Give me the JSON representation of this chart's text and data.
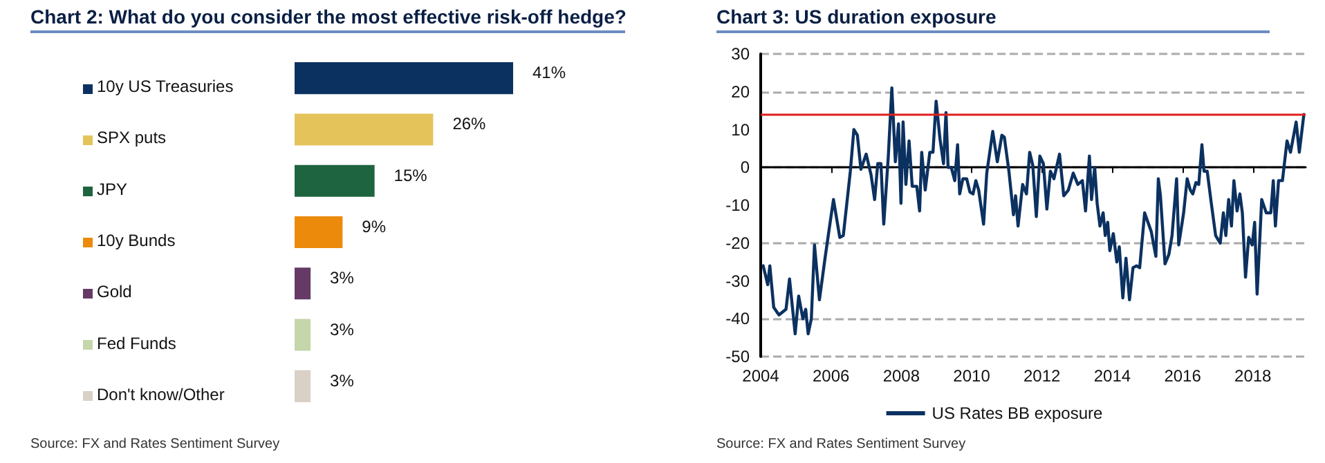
{
  "chart_data": [
    {
      "type": "bar",
      "orientation": "horizontal",
      "title": "Chart 2: What do you consider the most effective risk-off hedge?",
      "categories": [
        "10y US Treasuries",
        "SPX puts",
        "JPY",
        "10y Bunds",
        "Gold",
        "Fed Funds",
        "Don't know/Other"
      ],
      "values": [
        41,
        26,
        15,
        9,
        3,
        3,
        3
      ],
      "colors": [
        "#0b3160",
        "#e4c35a",
        "#1f6440",
        "#ec8a0c",
        "#653a66",
        "#c4d6aa",
        "#d9d0c6"
      ],
      "value_labels": [
        "41%",
        "26%",
        "15%",
        "9%",
        "3%",
        "3%",
        "3%"
      ],
      "annotations": [
        "Source:  FX and Rates Sentiment Survey"
      ]
    },
    {
      "type": "line",
      "title": "Chart 3: US duration exposure",
      "x": [
        2004.07,
        2004.2,
        2004.26,
        2004.37,
        2004.52,
        2004.72,
        2004.82,
        2004.98,
        2005.08,
        2005.2,
        2005.28,
        2005.35,
        2005.44,
        2005.53,
        2005.67,
        2005.83,
        2005.96,
        2006.07,
        2006.25,
        2006.35,
        2006.55,
        2006.65,
        2006.75,
        2006.85,
        2007.0,
        2007.14,
        2007.24,
        2007.33,
        2007.42,
        2007.5,
        2007.63,
        2007.73,
        2007.83,
        2007.92,
        2007.99,
        2008.05,
        2008.13,
        2008.22,
        2008.31,
        2008.44,
        2008.52,
        2008.58,
        2008.68,
        2008.81,
        2008.9,
        2008.99,
        2009.1,
        2009.2,
        2009.27,
        2009.33,
        2009.42,
        2009.52,
        2009.6,
        2009.66,
        2009.75,
        2009.86,
        2009.95,
        2010.04,
        2010.12,
        2010.2,
        2010.34,
        2010.43,
        2010.6,
        2010.73,
        2010.86,
        2010.93,
        2011.06,
        2011.19,
        2011.25,
        2011.32,
        2011.45,
        2011.56,
        2011.65,
        2011.74,
        2011.84,
        2011.94,
        2012.04,
        2012.14,
        2012.24,
        2012.34,
        2012.5,
        2012.62,
        2012.75,
        2012.89,
        2013.02,
        2013.15,
        2013.24,
        2013.35,
        2013.41,
        2013.5,
        2013.57,
        2013.65,
        2013.74,
        2013.8,
        2013.87,
        2013.93,
        2014.03,
        2014.13,
        2014.2,
        2014.3,
        2014.39,
        2014.49,
        2014.59,
        2014.69,
        2014.78,
        2014.92,
        2015.11,
        2015.24,
        2015.31,
        2015.37,
        2015.5,
        2015.61,
        2015.7,
        2015.83,
        2015.89,
        2016.03,
        2016.13,
        2016.22,
        2016.29,
        2016.38,
        2016.46,
        2016.55,
        2016.61,
        2016.7,
        2016.81,
        2016.94,
        2017.07,
        2017.16,
        2017.23,
        2017.31,
        2017.39,
        2017.46,
        2017.55,
        2017.63,
        2017.7,
        2017.79,
        2017.88,
        2017.98,
        2018.05,
        2018.12,
        2018.25,
        2018.38,
        2018.51,
        2018.58,
        2018.64,
        2018.73,
        2018.84,
        2018.97,
        2019.07,
        2019.23,
        2019.32,
        2019.45
      ],
      "series": [
        {
          "name": "US Rates BB exposure",
          "color": "#0b3160",
          "values": [
            -26,
            -31,
            -26,
            -37,
            -39,
            -37.5,
            -29.5,
            -44,
            -34,
            -40,
            -37.5,
            -44,
            -40,
            -20.5,
            -35,
            -24,
            -15.5,
            -8.5,
            -18.5,
            -18,
            -1,
            10,
            8.5,
            -0.5,
            3.5,
            -2,
            -8.5,
            1,
            1,
            -15,
            3,
            21,
            1.5,
            11.5,
            -9.5,
            12,
            -4.5,
            7,
            -5,
            -5,
            -11.5,
            4,
            -6,
            4,
            4,
            17.5,
            7.5,
            1,
            14.5,
            0,
            0,
            -3.5,
            6,
            -7,
            -3,
            -3,
            -6.5,
            -7,
            -3.5,
            -6,
            -15,
            -1.5,
            9.5,
            1.5,
            8.5,
            8,
            -1,
            -12.5,
            -7.5,
            -15.5,
            -4.5,
            -7,
            4,
            0.5,
            -13,
            3,
            1,
            -11,
            -1,
            -3,
            3.5,
            -7.5,
            -6,
            -1.5,
            -4.5,
            -3.5,
            -11.5,
            3,
            -8.5,
            0,
            -9.5,
            -15.5,
            -12,
            -18,
            -14.5,
            -22,
            -17.5,
            -25,
            -21,
            -34.5,
            -24,
            -35,
            -26.5,
            -26,
            -26.5,
            -12,
            -17,
            -23.5,
            -3,
            -7.5,
            -25.5,
            -23,
            -18,
            -3,
            -20.5,
            -12,
            -3,
            -6,
            -7,
            -4,
            -4.5,
            6,
            -1,
            -1,
            -9,
            -18,
            -20,
            -12,
            -18,
            -8.5,
            -15.5,
            -3.5,
            -11.5,
            -7,
            -12,
            -29,
            -18.5,
            -20.5,
            -14.5,
            -33.5,
            -8.5,
            -12,
            -12,
            -3.5,
            -15.5,
            -3.5,
            -3.5,
            7,
            4,
            12,
            4,
            14
          ]
        }
      ],
      "xlim": [
        2004,
        2019.5
      ],
      "xticks": [
        2004,
        2006,
        2008,
        2010,
        2012,
        2014,
        2016,
        2018
      ],
      "ylim": [
        -50,
        30
      ],
      "yticks": [
        -50,
        -40,
        -30,
        -20,
        -10,
        0,
        10,
        20,
        30
      ],
      "grid": "y",
      "legend": "bottom",
      "marker": "none",
      "line_style": "solid",
      "ref_lines": [
        {
          "axis": "y",
          "value": 14,
          "color": "#e0201b",
          "line_style": "solid"
        }
      ],
      "annotations": [
        "Source:  FX and Rates Sentiment Survey"
      ]
    }
  ]
}
